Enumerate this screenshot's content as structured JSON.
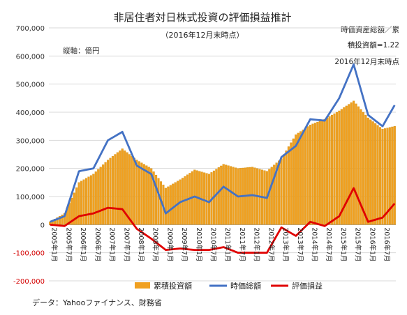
{
  "chart_data": {
    "type": "bar+line",
    "title": "非居住者対日株式投資の評価損益推計",
    "subtitle": "（2016年12月末時点）",
    "unit_label": "縦軸：億円",
    "note_lines": [
      "時価資産総額／累",
      "積投資額=1.22",
      "2016年12月末時点"
    ],
    "source": "データ：Yahooファイナンス、財務省",
    "ylim": [
      -200000,
      700000
    ],
    "y_ticks": [
      700000,
      600000,
      500000,
      400000,
      300000,
      200000,
      100000,
      0,
      -100000,
      -200000
    ],
    "y_tick_labels": [
      "700,000",
      "600,000",
      "500,000",
      "400,000",
      "300,000",
      "200,000",
      "100,000",
      "0",
      "-100,000",
      "-200,000"
    ],
    "x_tick_labels": [
      "2005年1月",
      "2005年7月",
      "2006年1月",
      "2006年7月",
      "2007年1月",
      "2007年7月",
      "2008年1月",
      "2008年7月",
      "2009年1月",
      "2009年7月",
      "2010年1月",
      "2010年7月",
      "2011年1月",
      "2011年7月",
      "2012年1月",
      "2012年7月",
      "2013年1月",
      "2013年7月",
      "2014年1月",
      "2014年7月",
      "2015年1月",
      "2015年7月",
      "2016年1月",
      "2016年7月"
    ],
    "x_months_count": 144,
    "grid": true,
    "legend_position": "bottom",
    "colors": {
      "cumulative": "#f0a020",
      "cumulative_edge": "#c98500",
      "market_value": "#4472c4",
      "pnl": "#e00000",
      "grid": "#d9d9d9"
    },
    "series": [
      {
        "name": "累積投資額",
        "kind": "bar",
        "color": "#f0a020",
        "x_month_index": [
          0,
          6,
          12,
          18,
          24,
          30,
          36,
          42,
          48,
          54,
          60,
          66,
          72,
          78,
          84,
          90,
          96,
          102,
          108,
          114,
          120,
          126,
          132,
          138,
          143
        ],
        "values": [
          10000,
          40000,
          150000,
          180000,
          230000,
          270000,
          230000,
          200000,
          130000,
          160000,
          195000,
          180000,
          215000,
          200000,
          205000,
          190000,
          235000,
          320000,
          355000,
          375000,
          405000,
          440000,
          380000,
          340000,
          350000
        ]
      },
      {
        "name": "時価総額",
        "kind": "line",
        "color": "#4472c4",
        "x_month_index": [
          0,
          6,
          12,
          18,
          24,
          30,
          36,
          42,
          48,
          54,
          60,
          66,
          72,
          78,
          84,
          90,
          96,
          102,
          108,
          114,
          120,
          126,
          132,
          138,
          143
        ],
        "values": [
          10000,
          30000,
          190000,
          200000,
          300000,
          330000,
          210000,
          180000,
          40000,
          80000,
          100000,
          80000,
          135000,
          100000,
          105000,
          95000,
          240000,
          280000,
          375000,
          370000,
          450000,
          570000,
          390000,
          350000,
          425000
        ]
      },
      {
        "name": "評価損益",
        "kind": "line",
        "color": "#e00000",
        "x_month_index": [
          0,
          6,
          12,
          18,
          24,
          30,
          36,
          42,
          48,
          54,
          60,
          66,
          72,
          78,
          84,
          90,
          96,
          102,
          108,
          114,
          120,
          126,
          132,
          138,
          143
        ],
        "values": [
          0,
          -5000,
          30000,
          40000,
          60000,
          55000,
          -15000,
          -50000,
          -90000,
          -85000,
          -90000,
          -90000,
          -80000,
          -100000,
          -100000,
          -100000,
          -10000,
          -40000,
          10000,
          -5000,
          30000,
          130000,
          10000,
          25000,
          75000
        ]
      }
    ]
  }
}
